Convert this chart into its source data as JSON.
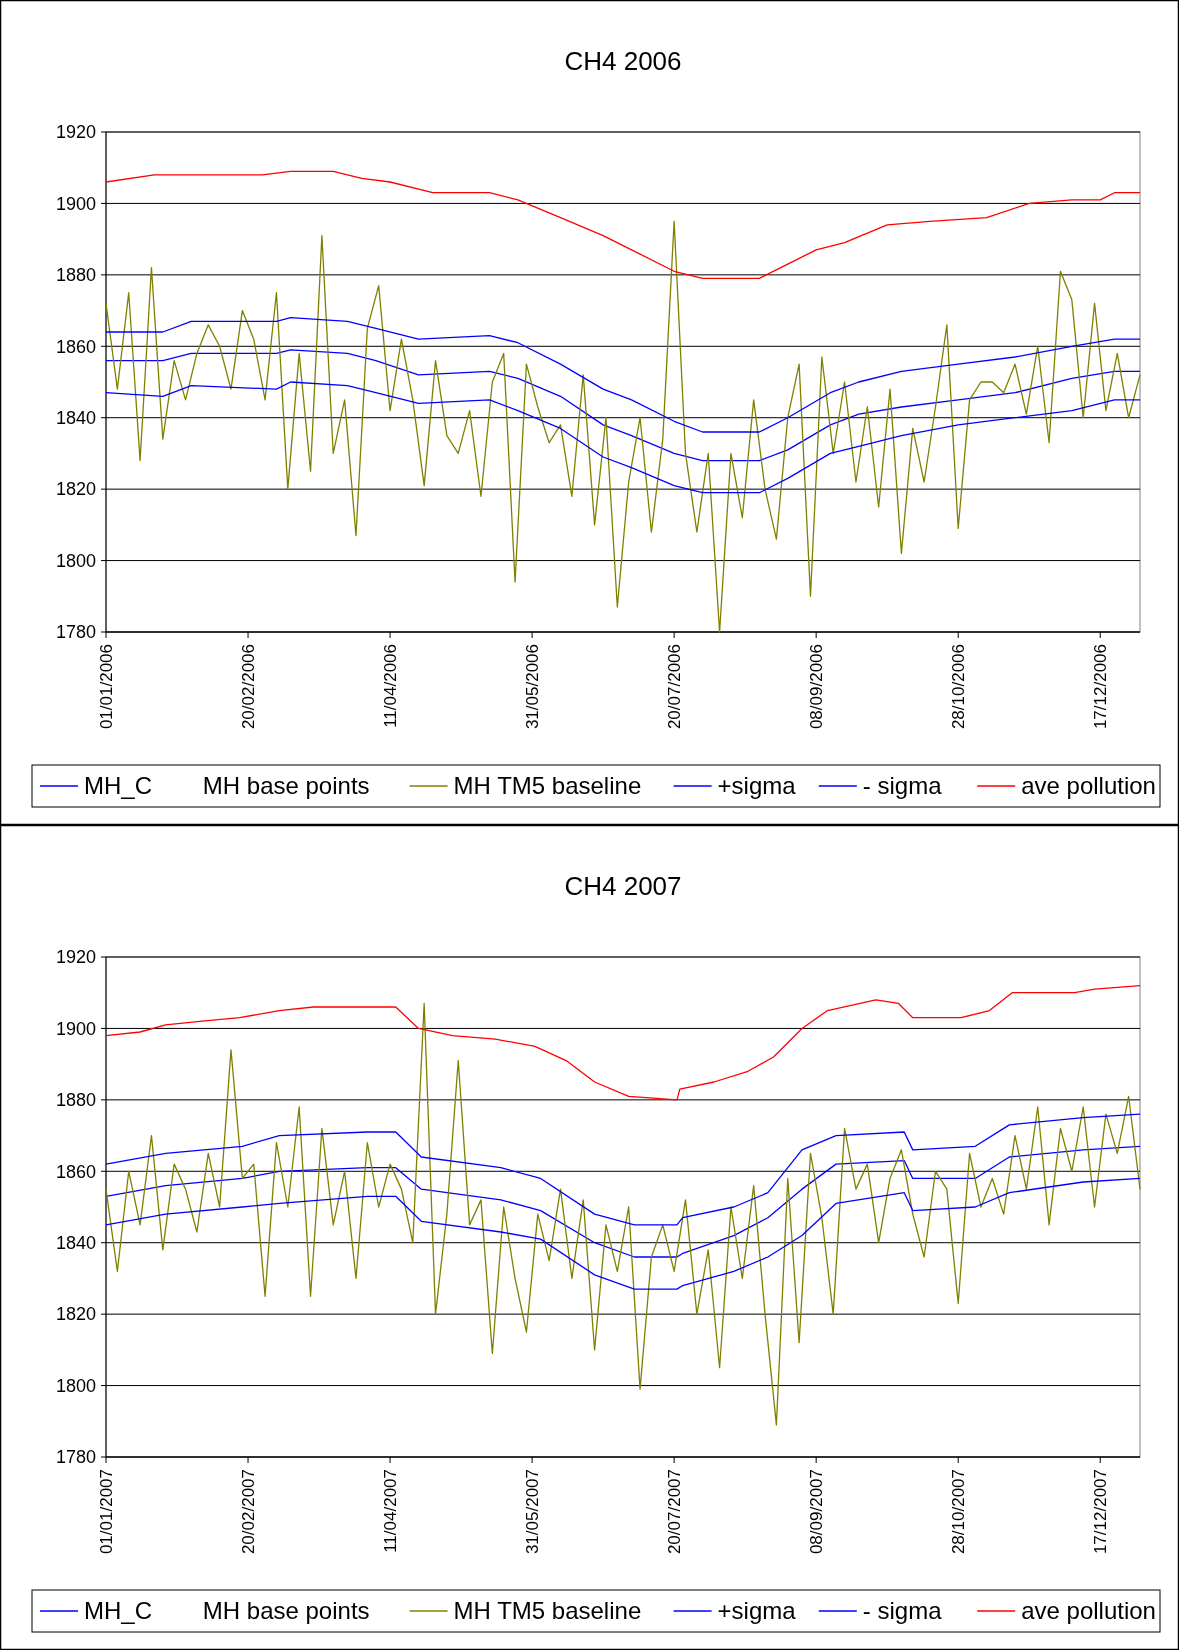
{
  "chart_data": [
    {
      "type": "line",
      "title": "CH4 2006",
      "ylim": [
        1780,
        1920
      ],
      "yticks": [
        1780,
        1800,
        1820,
        1840,
        1860,
        1880,
        1900,
        1920
      ],
      "xlim": [
        "2006-01-01",
        "2006-12-31"
      ],
      "xticks": [
        {
          "value": "2006-01-01",
          "label": "01/01/2006"
        },
        {
          "value": "2006-02-20",
          "label": "20/02/2006"
        },
        {
          "value": "2006-04-11",
          "label": "11/04/2006"
        },
        {
          "value": "2006-05-31",
          "label": "31/05/2006"
        },
        {
          "value": "2006-07-20",
          "label": "20/07/2006"
        },
        {
          "value": "2006-09-08",
          "label": "08/09/2006"
        },
        {
          "value": "2006-10-28",
          "label": "28/10/2006"
        },
        {
          "value": "2006-12-17",
          "label": "17/12/2006"
        }
      ],
      "grid": "y",
      "legend": "bottom",
      "marker": "none",
      "line_style": "solid",
      "series": [
        {
          "name": "MH_C",
          "color": "#0000ff",
          "x": [
            "2006-01-01",
            "2006-01-21",
            "2006-01-31",
            "2006-03-02",
            "2006-03-07",
            "2006-03-27",
            "2006-04-06",
            "2006-04-21",
            "2006-05-16",
            "2006-05-26",
            "2006-06-10",
            "2006-06-25",
            "2006-07-05",
            "2006-07-20",
            "2006-07-30",
            "2006-08-19",
            "2006-08-29",
            "2006-09-13",
            "2006-09-23",
            "2006-10-08",
            "2006-10-28",
            "2006-11-17",
            "2006-12-07",
            "2006-12-22",
            "2006-12-31"
          ],
          "values": [
            1856,
            1856,
            1858,
            1858,
            1859,
            1858,
            1856,
            1852,
            1853,
            1851,
            1846,
            1838,
            1835,
            1830,
            1828,
            1828,
            1831,
            1838,
            1841,
            1843,
            1845,
            1847,
            1851,
            1853,
            1853
          ]
        },
        {
          "name": "MH base points"
        },
        {
          "name": "MH TM5 baseline",
          "color": "#808000",
          "x": [
            "2006-01-01",
            "2006-01-05",
            "2006-01-09",
            "2006-01-13",
            "2006-01-17",
            "2006-01-21",
            "2006-01-25",
            "2006-01-29",
            "2006-02-02",
            "2006-02-06",
            "2006-02-10",
            "2006-02-14",
            "2006-02-18",
            "2006-02-22",
            "2006-02-26",
            "2006-03-02",
            "2006-03-06",
            "2006-03-10",
            "2006-03-14",
            "2006-03-18",
            "2006-03-22",
            "2006-03-26",
            "2006-03-30",
            "2006-04-03",
            "2006-04-07",
            "2006-04-11",
            "2006-04-15",
            "2006-04-19",
            "2006-04-23",
            "2006-04-27",
            "2006-05-01",
            "2006-05-05",
            "2006-05-09",
            "2006-05-13",
            "2006-05-17",
            "2006-05-21",
            "2006-05-25",
            "2006-05-29",
            "2006-06-02",
            "2006-06-06",
            "2006-06-10",
            "2006-06-14",
            "2006-06-18",
            "2006-06-22",
            "2006-06-26",
            "2006-06-30",
            "2006-07-04",
            "2006-07-08",
            "2006-07-12",
            "2006-07-16",
            "2006-07-20",
            "2006-07-24",
            "2006-07-28",
            "2006-08-01",
            "2006-08-05",
            "2006-08-09",
            "2006-08-13",
            "2006-08-17",
            "2006-08-21",
            "2006-08-25",
            "2006-08-29",
            "2006-09-02",
            "2006-09-06",
            "2006-09-10",
            "2006-09-14",
            "2006-09-18",
            "2006-09-22",
            "2006-09-26",
            "2006-09-30",
            "2006-10-04",
            "2006-10-08",
            "2006-10-12",
            "2006-10-16",
            "2006-10-20",
            "2006-10-24",
            "2006-10-28",
            "2006-11-01",
            "2006-11-05",
            "2006-11-09",
            "2006-11-13",
            "2006-11-17",
            "2006-11-21",
            "2006-11-25",
            "2006-11-29",
            "2006-12-03",
            "2006-12-07",
            "2006-12-11",
            "2006-12-15",
            "2006-12-19",
            "2006-12-23",
            "2006-12-27",
            "2006-12-31"
          ],
          "values": [
            1872,
            1848,
            1875,
            1828,
            1882,
            1834,
            1856,
            1845,
            1858,
            1866,
            1860,
            1848,
            1870,
            1862,
            1845,
            1875,
            1820,
            1858,
            1825,
            1891,
            1830,
            1845,
            1807,
            1865,
            1877,
            1842,
            1862,
            1845,
            1821,
            1856,
            1835,
            1830,
            1842,
            1818,
            1850,
            1858,
            1794,
            1855,
            1843,
            1833,
            1838,
            1818,
            1852,
            1810,
            1840,
            1787,
            1822,
            1840,
            1808,
            1834,
            1895,
            1830,
            1808,
            1830,
            1780,
            1830,
            1812,
            1845,
            1820,
            1806,
            1840,
            1855,
            1790,
            1857,
            1830,
            1850,
            1822,
            1843,
            1815,
            1848,
            1802,
            1837,
            1822,
            1843,
            1866,
            1809,
            1845,
            1850,
            1850,
            1847,
            1855,
            1841,
            1860,
            1833,
            1881,
            1873,
            1840,
            1872,
            1842,
            1858,
            1840,
            1852
          ]
        },
        {
          "name": "+sigma",
          "color": "#0000ff",
          "x": [
            "2006-01-01",
            "2006-01-21",
            "2006-01-31",
            "2006-03-02",
            "2006-03-07",
            "2006-03-27",
            "2006-04-06",
            "2006-04-21",
            "2006-05-16",
            "2006-05-26",
            "2006-06-10",
            "2006-06-25",
            "2006-07-05",
            "2006-07-20",
            "2006-07-30",
            "2006-08-19",
            "2006-08-29",
            "2006-09-13",
            "2006-09-23",
            "2006-10-08",
            "2006-10-28",
            "2006-11-17",
            "2006-12-07",
            "2006-12-22",
            "2006-12-31"
          ],
          "values": [
            1864,
            1864,
            1867,
            1867,
            1868,
            1867,
            1865,
            1862,
            1863,
            1861,
            1855,
            1848,
            1845,
            1839,
            1836,
            1836,
            1840,
            1847,
            1850,
            1853,
            1855,
            1857,
            1860,
            1862,
            1862
          ]
        },
        {
          "name": "- sigma",
          "color": "#0000ff",
          "x": [
            "2006-01-01",
            "2006-01-21",
            "2006-01-31",
            "2006-03-02",
            "2006-03-07",
            "2006-03-27",
            "2006-04-06",
            "2006-04-21",
            "2006-05-16",
            "2006-05-26",
            "2006-06-10",
            "2006-06-25",
            "2006-07-05",
            "2006-07-20",
            "2006-07-30",
            "2006-08-19",
            "2006-08-29",
            "2006-09-13",
            "2006-09-23",
            "2006-10-08",
            "2006-10-28",
            "2006-11-17",
            "2006-12-07",
            "2006-12-22",
            "2006-12-31"
          ],
          "values": [
            1847,
            1846,
            1849,
            1848,
            1850,
            1849,
            1847,
            1844,
            1845,
            1842,
            1837,
            1829,
            1826,
            1821,
            1819,
            1819,
            1823,
            1830,
            1832,
            1835,
            1838,
            1840,
            1842,
            1845,
            1845
          ]
        },
        {
          "name": "ave pollution",
          "color": "#ff0000",
          "x": [
            "2006-01-01",
            "2006-01-18",
            "2006-02-25",
            "2006-03-07",
            "2006-03-22",
            "2006-04-01",
            "2006-04-11",
            "2006-04-26",
            "2006-05-16",
            "2006-05-26",
            "2006-06-10",
            "2006-06-25",
            "2006-07-05",
            "2006-07-20",
            "2006-07-30",
            "2006-08-19",
            "2006-08-29",
            "2006-09-08",
            "2006-09-18",
            "2006-10-03",
            "2006-10-18",
            "2006-11-07",
            "2006-11-22",
            "2006-12-07",
            "2006-12-17",
            "2006-12-22",
            "2006-12-31"
          ],
          "values": [
            1906,
            1908,
            1908,
            1909,
            1909,
            1907,
            1906,
            1903,
            1903,
            1901,
            1896,
            1891,
            1887,
            1881,
            1879,
            1879,
            1883,
            1887,
            1889,
            1894,
            1895,
            1896,
            1900,
            1901,
            1901,
            1903,
            1903
          ]
        }
      ]
    },
    {
      "type": "line",
      "title": "CH4 2007",
      "ylim": [
        1780,
        1920
      ],
      "yticks": [
        1780,
        1800,
        1820,
        1840,
        1860,
        1880,
        1900,
        1920
      ],
      "xlim": [
        "2007-01-01",
        "2007-12-31"
      ],
      "xticks": [
        {
          "value": "2007-01-01",
          "label": "01/01/2007"
        },
        {
          "value": "2007-02-20",
          "label": "20/02/2007"
        },
        {
          "value": "2007-04-11",
          "label": "11/04/2007"
        },
        {
          "value": "2007-05-31",
          "label": "31/05/2007"
        },
        {
          "value": "2007-07-20",
          "label": "20/07/2007"
        },
        {
          "value": "2007-09-08",
          "label": "08/09/2007"
        },
        {
          "value": "2007-10-28",
          "label": "28/10/2007"
        },
        {
          "value": "2007-12-17",
          "label": "17/12/2007"
        }
      ],
      "grid": "y",
      "legend": "bottom",
      "marker": "none",
      "line_style": "solid",
      "series": [
        {
          "name": "MH_C",
          "color": "#0000ff",
          "x": [
            "2007-01-01",
            "2007-01-22",
            "2007-02-18",
            "2007-03-03",
            "2007-04-03",
            "2007-04-13",
            "2007-04-22",
            "2007-05-20",
            "2007-06-03",
            "2007-06-22",
            "2007-07-06",
            "2007-07-21",
            "2007-07-23",
            "2007-08-10",
            "2007-08-22",
            "2007-09-03",
            "2007-09-15",
            "2007-10-09",
            "2007-10-12",
            "2007-11-03",
            "2007-11-15",
            "2007-12-11",
            "2007-12-31"
          ],
          "values": [
            1853,
            1856,
            1858,
            1860,
            1861,
            1861,
            1855,
            1852,
            1849,
            1840,
            1836,
            1836,
            1837,
            1842,
            1847,
            1855,
            1862,
            1863,
            1858,
            1858,
            1864,
            1866,
            1867
          ]
        },
        {
          "name": "MH base points"
        },
        {
          "name": "MH TM5 baseline",
          "color": "#808000",
          "x": [
            "2007-01-01",
            "2007-01-05",
            "2007-01-09",
            "2007-01-13",
            "2007-01-17",
            "2007-01-21",
            "2007-01-25",
            "2007-01-29",
            "2007-02-02",
            "2007-02-06",
            "2007-02-10",
            "2007-02-14",
            "2007-02-18",
            "2007-02-22",
            "2007-02-26",
            "2007-03-02",
            "2007-03-06",
            "2007-03-10",
            "2007-03-14",
            "2007-03-18",
            "2007-03-22",
            "2007-03-26",
            "2007-03-30",
            "2007-04-03",
            "2007-04-07",
            "2007-04-11",
            "2007-04-15",
            "2007-04-19",
            "2007-04-23",
            "2007-04-27",
            "2007-05-01",
            "2007-05-05",
            "2007-05-09",
            "2007-05-13",
            "2007-05-17",
            "2007-05-21",
            "2007-05-25",
            "2007-05-29",
            "2007-06-02",
            "2007-06-06",
            "2007-06-10",
            "2007-06-14",
            "2007-06-18",
            "2007-06-22",
            "2007-06-26",
            "2007-06-30",
            "2007-07-04",
            "2007-07-08",
            "2007-07-12",
            "2007-07-16",
            "2007-07-20",
            "2007-07-24",
            "2007-07-28",
            "2007-08-01",
            "2007-08-05",
            "2007-08-09",
            "2007-08-13",
            "2007-08-17",
            "2007-08-21",
            "2007-08-25",
            "2007-08-29",
            "2007-09-02",
            "2007-09-06",
            "2007-09-10",
            "2007-09-14",
            "2007-09-18",
            "2007-09-22",
            "2007-09-26",
            "2007-09-30",
            "2007-10-04",
            "2007-10-08",
            "2007-10-12",
            "2007-10-16",
            "2007-10-20",
            "2007-10-24",
            "2007-10-28",
            "2007-11-01",
            "2007-11-05",
            "2007-11-09",
            "2007-11-13",
            "2007-11-17",
            "2007-11-21",
            "2007-11-25",
            "2007-11-29",
            "2007-12-03",
            "2007-12-07",
            "2007-12-11",
            "2007-12-15",
            "2007-12-19",
            "2007-12-23",
            "2007-12-27",
            "2007-12-31"
          ],
          "values": [
            1855,
            1832,
            1860,
            1845,
            1870,
            1838,
            1862,
            1855,
            1843,
            1865,
            1850,
            1894,
            1858,
            1862,
            1825,
            1868,
            1850,
            1878,
            1825,
            1872,
            1845,
            1860,
            1830,
            1868,
            1850,
            1862,
            1855,
            1840,
            1907,
            1820,
            1848,
            1891,
            1845,
            1852,
            1809,
            1850,
            1830,
            1815,
            1848,
            1835,
            1855,
            1830,
            1852,
            1810,
            1845,
            1832,
            1850,
            1799,
            1836,
            1845,
            1832,
            1852,
            1820,
            1838,
            1805,
            1850,
            1830,
            1856,
            1820,
            1789,
            1858,
            1812,
            1865,
            1847,
            1820,
            1872,
            1855,
            1862,
            1840,
            1858,
            1866,
            1848,
            1836,
            1860,
            1855,
            1823,
            1865,
            1850,
            1858,
            1848,
            1870,
            1855,
            1878,
            1845,
            1872,
            1860,
            1878,
            1850,
            1876,
            1865,
            1881,
            1855
          ]
        },
        {
          "name": "+sigma",
          "color": "#0000ff",
          "x": [
            "2007-01-01",
            "2007-01-22",
            "2007-02-18",
            "2007-03-03",
            "2007-04-03",
            "2007-04-13",
            "2007-04-22",
            "2007-05-20",
            "2007-06-03",
            "2007-06-22",
            "2007-07-06",
            "2007-07-21",
            "2007-07-23",
            "2007-08-10",
            "2007-08-22",
            "2007-09-03",
            "2007-09-15",
            "2007-10-09",
            "2007-10-12",
            "2007-11-03",
            "2007-11-15",
            "2007-12-11",
            "2007-12-31"
          ],
          "values": [
            1862,
            1865,
            1867,
            1870,
            1871,
            1871,
            1864,
            1861,
            1858,
            1848,
            1845,
            1845,
            1847,
            1850,
            1854,
            1866,
            1870,
            1871,
            1866,
            1867,
            1873,
            1875,
            1876
          ]
        },
        {
          "name": "- sigma",
          "color": "#0000ff",
          "x": [
            "2007-01-01",
            "2007-01-22",
            "2007-02-18",
            "2007-03-03",
            "2007-04-03",
            "2007-04-13",
            "2007-04-22",
            "2007-05-20",
            "2007-06-03",
            "2007-06-22",
            "2007-07-06",
            "2007-07-21",
            "2007-07-23",
            "2007-08-10",
            "2007-08-22",
            "2007-09-03",
            "2007-09-15",
            "2007-10-09",
            "2007-10-12",
            "2007-11-03",
            "2007-11-15",
            "2007-12-11",
            "2007-12-31"
          ],
          "values": [
            1845,
            1848,
            1850,
            1851,
            1853,
            1853,
            1846,
            1843,
            1841,
            1831,
            1827,
            1827,
            1828,
            1832,
            1836,
            1842,
            1851,
            1854,
            1849,
            1850,
            1854,
            1857,
            1858
          ]
        },
        {
          "name": "ave pollution",
          "color": "#ff0000",
          "x": [
            "2007-01-01",
            "2007-01-13",
            "2007-01-22",
            "2007-02-03",
            "2007-02-17",
            "2007-03-03",
            "2007-03-15",
            "2007-03-29",
            "2007-04-13",
            "2007-04-21",
            "2007-05-03",
            "2007-05-18",
            "2007-06-01",
            "2007-06-12",
            "2007-06-22",
            "2007-07-04",
            "2007-07-21",
            "2007-07-22",
            "2007-08-03",
            "2007-08-15",
            "2007-08-24",
            "2007-09-03",
            "2007-09-12",
            "2007-09-29",
            "2007-10-07",
            "2007-10-12",
            "2007-10-29",
            "2007-11-08",
            "2007-11-16",
            "2007-12-08",
            "2007-12-15",
            "2007-12-31"
          ],
          "values": [
            1898,
            1899,
            1901,
            1902,
            1903,
            1905,
            1906,
            1906,
            1906,
            1900,
            1898,
            1897,
            1895,
            1891,
            1885,
            1881,
            1880,
            1883,
            1885,
            1888,
            1892,
            1900,
            1905,
            1908,
            1907,
            1903,
            1903,
            1905,
            1910,
            1910,
            1911,
            1912
          ]
        }
      ]
    }
  ]
}
